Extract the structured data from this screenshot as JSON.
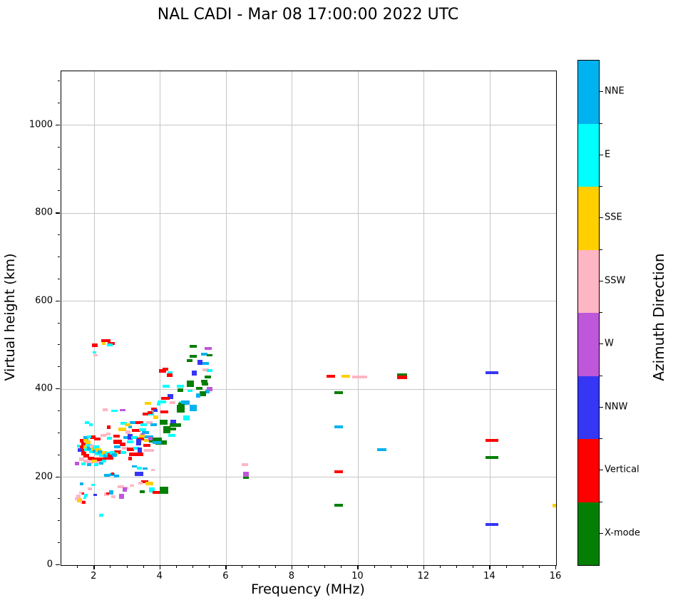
{
  "figure": {
    "background": "#FFFFFF"
  },
  "chart_data": {
    "type": "scatter",
    "title": "NAL CADI - Mar 08 17:00:00 2022 UTC",
    "xlabel": "Frequency (MHz)",
    "ylabel": "Virtual height (km)",
    "colorbar_title": "Azimuth Direction",
    "xlim": [
      1,
      16
    ],
    "ylim": [
      0,
      1123
    ],
    "xticks": [
      2,
      4,
      6,
      8,
      10,
      12,
      14,
      16
    ],
    "yticks": [
      0,
      200,
      400,
      600,
      800,
      1000
    ],
    "x_minor_step": 0.5,
    "y_minor_step": 50,
    "grid": true,
    "grid_color": "#c6c6c6",
    "legend_position": "right-colorbar",
    "legend": [
      {
        "label": "NNE",
        "color": "#00B3F0"
      },
      {
        "label": "E",
        "color": "#00FFFF"
      },
      {
        "label": "SSE",
        "color": "#FFCF00"
      },
      {
        "label": "SSW",
        "color": "#FFB6C4"
      },
      {
        "label": "W",
        "color": "#BE57DA"
      },
      {
        "label": "NNW",
        "color": "#3636F5"
      },
      {
        "label": "Vertical",
        "color": "#FF0000"
      },
      {
        "label": "X-mode",
        "color": "#047F04"
      }
    ],
    "point_format": [
      "freq_MHz",
      "virtual_height_km",
      "legend_color_index",
      "marker_w_px",
      "marker_h_px"
    ],
    "points": [
      [
        2.02,
        500,
        6,
        8,
        5
      ],
      [
        2.28,
        505,
        2,
        5,
        5
      ],
      [
        2.36,
        510,
        6,
        13,
        4
      ],
      [
        2.52,
        504,
        6,
        10,
        4
      ],
      [
        2.46,
        500,
        1,
        8,
        4
      ],
      [
        2.0,
        483,
        1,
        5,
        3
      ],
      [
        2.03,
        477,
        3,
        6,
        3
      ],
      [
        4.07,
        441,
        6,
        10,
        5
      ],
      [
        4.15,
        445,
        6,
        8,
        4
      ],
      [
        4.3,
        437,
        1,
        7,
        4
      ],
      [
        4.28,
        432,
        6,
        8,
        5
      ],
      [
        5.0,
        497,
        7,
        10,
        4
      ],
      [
        5.45,
        492,
        4,
        10,
        4
      ],
      [
        5.0,
        475,
        7,
        10,
        4
      ],
      [
        5.33,
        480,
        0,
        9,
        4
      ],
      [
        5.5,
        477,
        7,
        8,
        3
      ],
      [
        4.9,
        465,
        7,
        8,
        4
      ],
      [
        5.2,
        461,
        5,
        7,
        7
      ],
      [
        5.37,
        458,
        0,
        9,
        4
      ],
      [
        5.37,
        444,
        3,
        9,
        4
      ],
      [
        5.5,
        443,
        1,
        8,
        4
      ],
      [
        5.03,
        437,
        5,
        7,
        7
      ],
      [
        5.45,
        427,
        7,
        9,
        4
      ],
      [
        4.92,
        412,
        7,
        10,
        9
      ],
      [
        4.6,
        406,
        1,
        10,
        4
      ],
      [
        4.17,
        407,
        1,
        10,
        4
      ],
      [
        4.6,
        398,
        7,
        8,
        5
      ],
      [
        5.33,
        418,
        7,
        9,
        4
      ],
      [
        5.35,
        411,
        7,
        9,
        4
      ],
      [
        5.5,
        400,
        4,
        8,
        6
      ],
      [
        5.43,
        394,
        0,
        6,
        5
      ],
      [
        5.18,
        402,
        7,
        9,
        4
      ],
      [
        5.28,
        390,
        7,
        9,
        7
      ],
      [
        4.9,
        396,
        1,
        7,
        3
      ],
      [
        5.15,
        385,
        0,
        6,
        6
      ],
      [
        4.3,
        384,
        5,
        8,
        7
      ],
      [
        4.15,
        379,
        6,
        12,
        4
      ],
      [
        4.05,
        371,
        1,
        12,
        4
      ],
      [
        4.38,
        370,
        3,
        8,
        4
      ],
      [
        4.67,
        369,
        1,
        9,
        4
      ],
      [
        4.8,
        368,
        0,
        8,
        4
      ],
      [
        4.65,
        366,
        7,
        9,
        5
      ],
      [
        4.75,
        370,
        0,
        12,
        5
      ],
      [
        4.62,
        355,
        7,
        11,
        11
      ],
      [
        5.0,
        358,
        0,
        10,
        9
      ],
      [
        4.8,
        334,
        1,
        9,
        7
      ],
      [
        4.12,
        349,
        6,
        11,
        4
      ],
      [
        3.82,
        355,
        6,
        8,
        4
      ],
      [
        3.85,
        352,
        5,
        6,
        4
      ],
      [
        3.87,
        336,
        2,
        7,
        5
      ],
      [
        4.1,
        325,
        7,
        11,
        7
      ],
      [
        4.4,
        325,
        5,
        8,
        7
      ],
      [
        4.52,
        319,
        1,
        8,
        4
      ],
      [
        3.62,
        368,
        2,
        9,
        4
      ],
      [
        3.95,
        367,
        1,
        5,
        4
      ],
      [
        3.72,
        345,
        1,
        8,
        6
      ],
      [
        2.33,
        354,
        3,
        7,
        4
      ],
      [
        2.6,
        351,
        1,
        9,
        3
      ],
      [
        2.85,
        352,
        4,
        8,
        3
      ],
      [
        3.55,
        343,
        6,
        8,
        4
      ],
      [
        3.7,
        346,
        6,
        7,
        4
      ],
      [
        2.9,
        323,
        1,
        9,
        4
      ],
      [
        3.17,
        324,
        0,
        9,
        4
      ],
      [
        3.37,
        324,
        6,
        11,
        4
      ],
      [
        3.68,
        324,
        3,
        9,
        4
      ],
      [
        3.5,
        319,
        1,
        9,
        4
      ],
      [
        3.8,
        319,
        0,
        9,
        4
      ],
      [
        2.85,
        309,
        2,
        11,
        5
      ],
      [
        3.02,
        302,
        3,
        7,
        5
      ],
      [
        3.27,
        307,
        6,
        12,
        4
      ],
      [
        3.47,
        308,
        1,
        10,
        4
      ],
      [
        3.55,
        302,
        0,
        10,
        4
      ],
      [
        4.19,
        308,
        7,
        10,
        10
      ],
      [
        4.4,
        310,
        7,
        8,
        4
      ],
      [
        4.45,
        318,
        7,
        16,
        5
      ],
      [
        1.78,
        324,
        1,
        6,
        4
      ],
      [
        1.9,
        320,
        1,
        5,
        4
      ],
      [
        2.44,
        313,
        6,
        5,
        5
      ],
      [
        3.09,
        314,
        0,
        5,
        4
      ],
      [
        3.0,
        320,
        2,
        8,
        4
      ],
      [
        2.42,
        298,
        3,
        6,
        4
      ],
      [
        2.67,
        294,
        6,
        9,
        4
      ],
      [
        2.97,
        290,
        0,
        9,
        4
      ],
      [
        3.09,
        291,
        5,
        7,
        8
      ],
      [
        3.21,
        290,
        1,
        9,
        4
      ],
      [
        3.39,
        287,
        6,
        10,
        4
      ],
      [
        3.64,
        291,
        0,
        14,
        4
      ],
      [
        3.46,
        295,
        4,
        6,
        5
      ],
      [
        3.59,
        283,
        2,
        7,
        4
      ],
      [
        3.85,
        284,
        7,
        18,
        7
      ],
      [
        4.02,
        278,
        7,
        16,
        6
      ],
      [
        3.35,
        279,
        5,
        7,
        9
      ],
      [
        3.08,
        280,
        1,
        9,
        4
      ],
      [
        3.9,
        279,
        0,
        12,
        4
      ],
      [
        4.35,
        295,
        1,
        10,
        4
      ],
      [
        3.7,
        287,
        4,
        6,
        5
      ],
      [
        3.45,
        294,
        2,
        8,
        4
      ],
      [
        3.6,
        273,
        6,
        10,
        4
      ],
      [
        2.7,
        280,
        6,
        12,
        6
      ],
      [
        2.85,
        275,
        6,
        8,
        5
      ],
      [
        2.69,
        269,
        0,
        9,
        4
      ],
      [
        2.92,
        266,
        3,
        8,
        4
      ],
      [
        3.09,
        263,
        6,
        10,
        5
      ],
      [
        3.26,
        266,
        1,
        8,
        4
      ],
      [
        3.37,
        261,
        5,
        6,
        8
      ],
      [
        3.66,
        261,
        3,
        14,
        4
      ],
      [
        2.71,
        257,
        6,
        10,
        5
      ],
      [
        2.67,
        253,
        2,
        6,
        4
      ],
      [
        2.89,
        256,
        1,
        8,
        4
      ],
      [
        3.26,
        252,
        6,
        20,
        5
      ],
      [
        3.08,
        242,
        6,
        5,
        5
      ],
      [
        2.43,
        243,
        6,
        13,
        4
      ],
      [
        1.74,
        287,
        0,
        7,
        7
      ],
      [
        2.27,
        295,
        3,
        8,
        4
      ],
      [
        2.45,
        288,
        1,
        7,
        4
      ],
      [
        1.96,
        291,
        6,
        8,
        5
      ],
      [
        1.85,
        292,
        1,
        6,
        4
      ],
      [
        2.1,
        287,
        6,
        9,
        4
      ],
      [
        1.62,
        282,
        6,
        6,
        5
      ],
      [
        1.66,
        275,
        6,
        6,
        5
      ],
      [
        1.62,
        268,
        6,
        5,
        5
      ],
      [
        1.64,
        261,
        6,
        6,
        5
      ],
      [
        1.69,
        254,
        6,
        7,
        5
      ],
      [
        1.76,
        248,
        6,
        8,
        5
      ],
      [
        1.9,
        243,
        6,
        9,
        5
      ],
      [
        2.06,
        240,
        6,
        10,
        5
      ],
      [
        2.25,
        241,
        6,
        9,
        5
      ],
      [
        2.4,
        246,
        6,
        9,
        5
      ],
      [
        1.73,
        284,
        2,
        6,
        4
      ],
      [
        1.8,
        279,
        2,
        7,
        5
      ],
      [
        1.74,
        268,
        2,
        6,
        5
      ],
      [
        1.77,
        262,
        1,
        7,
        4
      ],
      [
        1.85,
        272,
        1,
        8,
        5
      ],
      [
        1.86,
        265,
        0,
        7,
        5
      ],
      [
        1.95,
        270,
        3,
        7,
        5
      ],
      [
        1.93,
        259,
        1,
        8,
        5
      ],
      [
        1.98,
        264,
        2,
        7,
        5
      ],
      [
        2.05,
        268,
        1,
        8,
        5
      ],
      [
        2.02,
        258,
        0,
        7,
        5
      ],
      [
        2.12,
        262,
        2,
        8,
        5
      ],
      [
        2.1,
        253,
        1,
        7,
        5
      ],
      [
        2.17,
        257,
        0,
        7,
        5
      ],
      [
        2.22,
        251,
        1,
        7,
        5
      ],
      [
        2.3,
        255,
        2,
        7,
        5
      ],
      [
        2.35,
        249,
        0,
        7,
        5
      ],
      [
        2.42,
        253,
        1,
        7,
        5
      ],
      [
        2.5,
        250,
        6,
        8,
        5
      ],
      [
        2.55,
        255,
        1,
        7,
        5
      ],
      [
        2.62,
        251,
        0,
        7,
        5
      ],
      [
        1.55,
        262,
        5,
        5,
        5
      ],
      [
        1.52,
        270,
        1,
        4,
        4
      ],
      [
        1.48,
        231,
        4,
        6,
        5
      ],
      [
        1.62,
        240,
        3,
        7,
        5
      ],
      [
        1.75,
        236,
        3,
        8,
        5
      ],
      [
        1.9,
        234,
        3,
        7,
        4
      ],
      [
        2.0,
        236,
        2,
        7,
        4
      ],
      [
        2.12,
        234,
        3,
        7,
        4
      ],
      [
        1.68,
        230,
        1,
        6,
        4
      ],
      [
        1.84,
        229,
        0,
        6,
        4
      ],
      [
        2.05,
        229,
        1,
        6,
        4
      ],
      [
        2.2,
        232,
        0,
        6,
        4
      ],
      [
        2.3,
        236,
        1,
        6,
        4
      ],
      [
        3.37,
        220,
        1,
        7,
        4
      ],
      [
        3.55,
        220,
        0,
        7,
        3
      ],
      [
        3.22,
        225,
        0,
        7,
        3
      ],
      [
        3.35,
        208,
        5,
        12,
        6
      ],
      [
        3.78,
        216,
        3,
        5,
        3
      ],
      [
        2.38,
        204,
        0,
        8,
        4
      ],
      [
        2.55,
        205,
        0,
        7,
        4
      ],
      [
        2.67,
        202,
        0,
        7,
        4
      ],
      [
        2.55,
        209,
        6,
        4,
        3
      ],
      [
        1.97,
        182,
        1,
        5,
        3
      ],
      [
        1.61,
        184,
        0,
        5,
        4
      ],
      [
        1.86,
        173,
        3,
        6,
        4
      ],
      [
        2.8,
        178,
        3,
        9,
        4
      ],
      [
        2.95,
        175,
        3,
        7,
        4
      ],
      [
        3.14,
        180,
        3,
        6,
        3
      ],
      [
        2.92,
        171,
        4,
        6,
        6
      ],
      [
        3.52,
        190,
        6,
        10,
        4
      ],
      [
        3.68,
        186,
        2,
        11,
        5
      ],
      [
        3.4,
        187,
        3,
        6,
        4
      ],
      [
        3.75,
        171,
        1,
        8,
        7
      ],
      [
        3.88,
        166,
        6,
        10,
        4
      ],
      [
        4.12,
        170,
        7,
        12,
        10
      ],
      [
        3.45,
        167,
        7,
        7,
        4
      ],
      [
        2.38,
        161,
        3,
        7,
        5
      ],
      [
        2.4,
        163,
        6,
        4,
        3
      ],
      [
        2.83,
        157,
        4,
        7,
        7
      ],
      [
        1.74,
        158,
        1,
        5,
        4
      ],
      [
        2.02,
        160,
        5,
        5,
        3
      ],
      [
        1.65,
        163,
        6,
        4,
        3
      ],
      [
        1.51,
        157,
        3,
        6,
        5
      ],
      [
        1.55,
        148,
        2,
        7,
        6
      ],
      [
        1.65,
        143,
        3,
        6,
        5
      ],
      [
        1.72,
        153,
        1,
        4,
        3
      ],
      [
        1.68,
        142,
        6,
        5,
        4
      ],
      [
        1.47,
        150,
        3,
        5,
        4
      ],
      [
        1.58,
        165,
        3,
        4,
        3
      ],
      [
        2.52,
        165,
        0,
        6,
        6
      ],
      [
        2.58,
        156,
        3,
        6,
        4
      ],
      [
        2.22,
        114,
        1,
        6,
        4
      ],
      [
        6.57,
        228,
        3,
        9,
        4
      ],
      [
        6.6,
        205,
        4,
        8,
        8
      ],
      [
        6.6,
        199,
        7,
        8,
        3
      ],
      [
        9.17,
        430,
        6,
        12,
        4
      ],
      [
        9.62,
        430,
        2,
        12,
        4
      ],
      [
        10.05,
        428,
        3,
        21,
        4
      ],
      [
        11.33,
        432,
        7,
        14,
        5
      ],
      [
        11.33,
        427,
        6,
        14,
        5
      ],
      [
        9.4,
        392,
        7,
        12,
        4
      ],
      [
        9.4,
        315,
        0,
        12,
        4
      ],
      [
        10.72,
        262,
        0,
        13,
        4
      ],
      [
        9.4,
        213,
        6,
        12,
        4
      ],
      [
        9.4,
        136,
        7,
        12,
        4
      ],
      [
        14.05,
        438,
        5,
        18,
        4
      ],
      [
        14.05,
        283,
        6,
        18,
        4
      ],
      [
        14.05,
        244,
        7,
        18,
        4
      ],
      [
        14.05,
        92,
        5,
        18,
        4
      ],
      [
        15.95,
        136,
        2,
        6,
        5
      ]
    ]
  }
}
